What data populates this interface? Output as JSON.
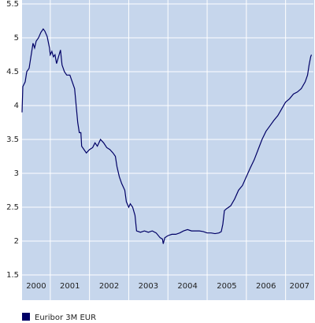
{
  "chart_data": {
    "type": "line",
    "x": [
      2000.28,
      2000.3,
      2000.36,
      2000.4,
      2000.46,
      2000.5,
      2000.56,
      2000.6,
      2000.64,
      2000.7,
      2000.76,
      2000.82,
      2000.86,
      2000.92,
      2000.98,
      2001.0,
      2001.04,
      2001.08,
      2001.12,
      2001.16,
      2001.2,
      2001.26,
      2001.3,
      2001.36,
      2001.42,
      2001.5,
      2001.56,
      2001.62,
      2001.66,
      2001.7,
      2001.74,
      2001.78,
      2001.8,
      2001.86,
      2001.92,
      2002.0,
      2002.08,
      2002.14,
      2002.2,
      2002.28,
      2002.36,
      2002.44,
      2002.52,
      2002.6,
      2002.66,
      2002.7,
      2002.76,
      2002.82,
      2002.9,
      2002.94,
      2003.0,
      2003.04,
      2003.1,
      2003.16,
      2003.2,
      2003.3,
      2003.4,
      2003.5,
      2003.6,
      2003.7,
      2003.8,
      2003.86,
      2003.88,
      2003.92,
      2004.0,
      2004.1,
      2004.2,
      2004.3,
      2004.4,
      2004.5,
      2004.6,
      2004.7,
      2004.8,
      2004.9,
      2005.0,
      2005.1,
      2005.2,
      2005.3,
      2005.36,
      2005.4,
      2005.44,
      2005.5,
      2005.6,
      2005.7,
      2005.8,
      2005.9,
      2006.0,
      2006.1,
      2006.2,
      2006.3,
      2006.4,
      2006.5,
      2006.6,
      2006.7,
      2006.8,
      2006.9,
      2007.0,
      2007.1,
      2007.2,
      2007.3,
      2007.4,
      2007.5,
      2007.56,
      2007.6,
      2007.64,
      2007.66
    ],
    "series": [
      {
        "name": "Euribor 3M EUR",
        "color": "#000066",
        "values": [
          3.9,
          4.28,
          4.35,
          4.5,
          4.55,
          4.7,
          4.92,
          4.85,
          4.95,
          5.0,
          5.08,
          5.13,
          5.1,
          5.02,
          4.85,
          4.75,
          4.8,
          4.72,
          4.75,
          4.62,
          4.7,
          4.82,
          4.6,
          4.5,
          4.45,
          4.45,
          4.35,
          4.25,
          4.0,
          3.75,
          3.6,
          3.6,
          3.4,
          3.35,
          3.3,
          3.35,
          3.38,
          3.45,
          3.4,
          3.5,
          3.45,
          3.38,
          3.35,
          3.3,
          3.25,
          3.1,
          2.95,
          2.85,
          2.75,
          2.58,
          2.5,
          2.55,
          2.5,
          2.38,
          2.15,
          2.13,
          2.15,
          2.13,
          2.15,
          2.12,
          2.05,
          2.03,
          1.96,
          2.05,
          2.08,
          2.1,
          2.1,
          2.12,
          2.15,
          2.17,
          2.15,
          2.15,
          2.15,
          2.14,
          2.12,
          2.12,
          2.11,
          2.12,
          2.14,
          2.25,
          2.45,
          2.48,
          2.52,
          2.62,
          2.75,
          2.82,
          2.95,
          3.08,
          3.2,
          3.35,
          3.5,
          3.62,
          3.7,
          3.78,
          3.85,
          3.95,
          4.05,
          4.1,
          4.17,
          4.2,
          4.25,
          4.35,
          4.45,
          4.6,
          4.72,
          4.75
        ]
      }
    ],
    "xlim": [
      2000.28,
      2007.71
    ],
    "xticks": [
      2001,
      2002,
      2003,
      2004,
      2005,
      2006,
      2007
    ],
    "year_labels": [
      "2000",
      "2001",
      "2002",
      "2003",
      "2004",
      "2005",
      "2006",
      "2007"
    ],
    "ylim": [
      1.5,
      5.5
    ],
    "yticks": [
      1.5,
      2,
      2.5,
      3,
      3.5,
      4,
      4.5,
      5,
      5.5
    ],
    "grid": true
  }
}
